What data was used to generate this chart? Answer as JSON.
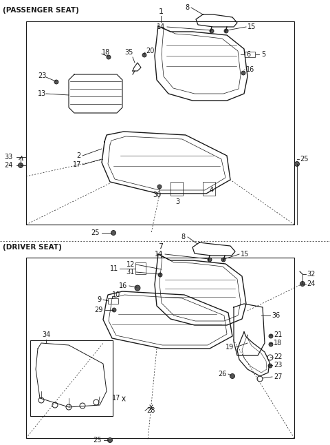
{
  "bg_color": "#ffffff",
  "section1_label": "(PASSENGER SEAT)",
  "section2_label": "(DRIVER SEAT)",
  "section1_number": "1",
  "section2_number": "7",
  "line_color": "#1a1a1a",
  "font_size": 7.0,
  "title_font_size": 7.0
}
